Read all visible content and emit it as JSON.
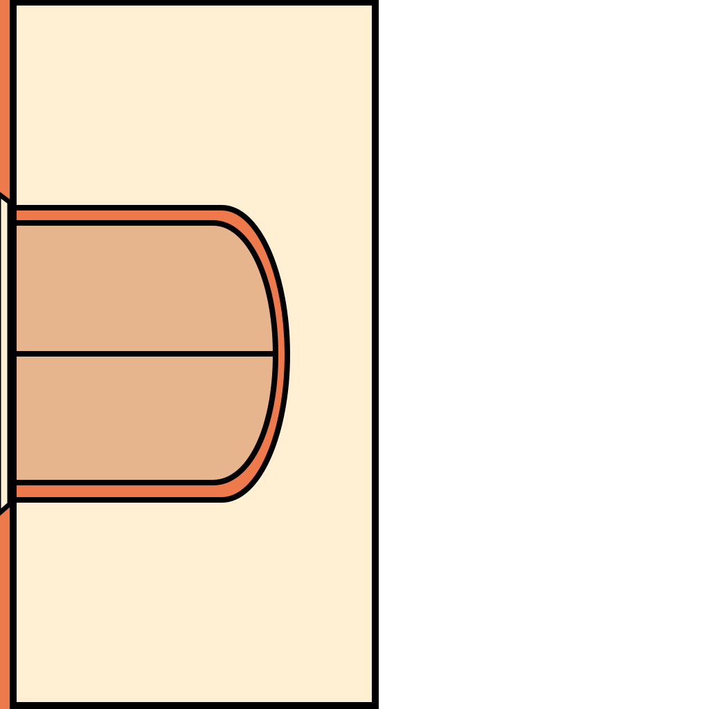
{
  "colors": {
    "background": "#ffffff",
    "panel_fill": "#fff0d4",
    "accent_orange": "#ee7a4c",
    "tan_fill": "#e6b48d",
    "outline": "#000000"
  },
  "shapes": {
    "left_strip": "orange-strip",
    "panel": "cream-panel",
    "rounded_tab": "orange-rounded-tab",
    "tab_inner": "tan-inner-block",
    "divider": "horizontal-divider-line"
  }
}
